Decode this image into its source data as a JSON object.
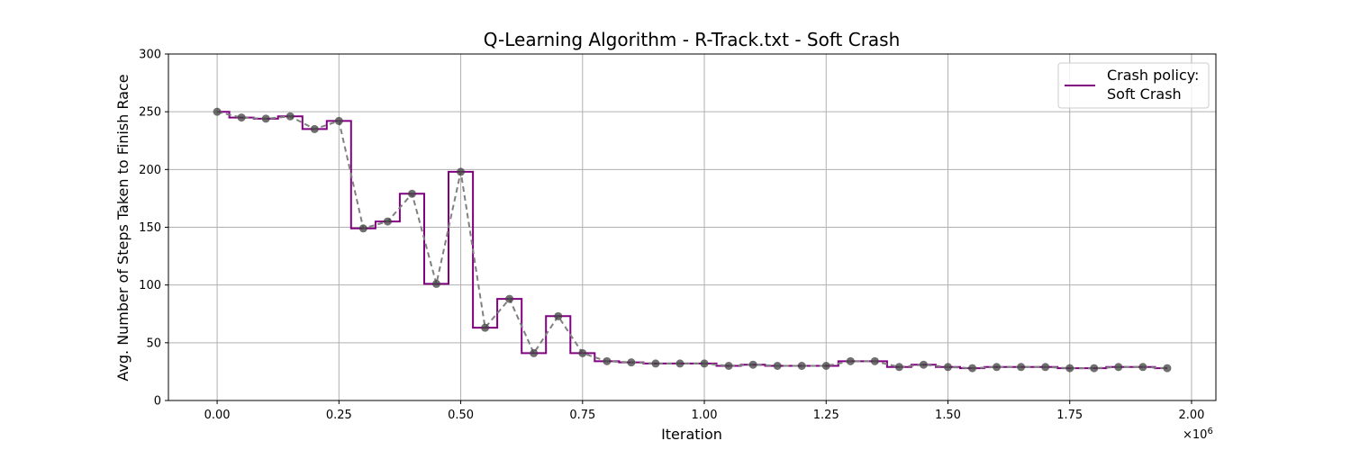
{
  "chart_data": {
    "type": "line",
    "title": "Q-Learning Algorithm - R-Track.txt - Soft Crash",
    "xlabel": "Iteration",
    "ylabel": "Avg. Number of Steps Taken to Finish Race",
    "x_multiplier_label": "×10",
    "x_multiplier_exponent": "6",
    "xlim": [
      -100000,
      2050000
    ],
    "ylim": [
      0,
      300
    ],
    "x_ticks": [
      0,
      250000,
      500000,
      750000,
      1000000,
      1250000,
      1500000,
      1750000,
      2000000
    ],
    "x_tick_labels": [
      "0.00",
      "0.25",
      "0.50",
      "0.75",
      "1.00",
      "1.25",
      "1.50",
      "1.75",
      "2.00"
    ],
    "y_ticks": [
      0,
      50,
      100,
      150,
      200,
      250,
      300
    ],
    "y_tick_labels": [
      "0",
      "50",
      "100",
      "150",
      "200",
      "250",
      "300"
    ],
    "grid": true,
    "legend": {
      "placement": "top-right",
      "entries": [
        {
          "label_line1": "Crash policy:",
          "label_line2": "Soft Crash",
          "color": "#800080"
        }
      ]
    },
    "x": [
      0,
      50000,
      100000,
      150000,
      200000,
      250000,
      300000,
      350000,
      400000,
      450000,
      500000,
      550000,
      600000,
      650000,
      700000,
      750000,
      800000,
      850000,
      900000,
      950000,
      1000000,
      1050000,
      1100000,
      1150000,
      1200000,
      1250000,
      1300000,
      1350000,
      1400000,
      1450000,
      1500000,
      1550000,
      1600000,
      1650000,
      1700000,
      1750000,
      1800000,
      1850000,
      1900000,
      1950000
    ],
    "series": [
      {
        "style": "step-mid",
        "color": "#800080",
        "values": [
          250,
          245,
          244,
          246,
          235,
          242,
          149,
          155,
          179,
          101,
          198,
          63,
          88,
          41,
          73,
          41,
          34,
          33,
          32,
          32,
          32,
          30,
          31,
          30,
          30,
          30,
          34,
          34,
          29,
          31,
          29,
          28,
          29,
          29,
          29,
          28,
          28,
          29,
          29,
          28
        ]
      },
      {
        "style": "dashed-markers",
        "color": "#808080",
        "marker_color": "#404040",
        "values": [
          250,
          245,
          244,
          246,
          235,
          242,
          149,
          155,
          179,
          101,
          198,
          63,
          88,
          41,
          73,
          41,
          34,
          33,
          32,
          32,
          32,
          30,
          31,
          30,
          30,
          30,
          34,
          34,
          29,
          31,
          29,
          28,
          29,
          29,
          29,
          28,
          28,
          29,
          29,
          28
        ]
      }
    ]
  }
}
